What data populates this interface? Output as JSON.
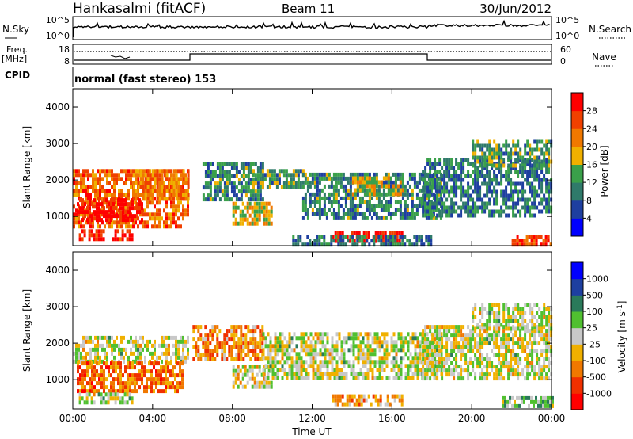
{
  "header": {
    "station": "Hankasalmi (fitACF)",
    "beam": "Beam 11",
    "date": "30/Jun/2012"
  },
  "nsky": {
    "label": "N.Sky",
    "ticks": [
      "10^5",
      "10^0"
    ],
    "right_ticks": [
      "10^5",
      "10^0"
    ],
    "right_label": "N.Search"
  },
  "freq": {
    "label_line1": "Freq.",
    "label_line2": "[MHz]",
    "ticks": [
      "18",
      "8"
    ],
    "right_ticks": [
      "60",
      "0"
    ],
    "right_label": "Nave"
  },
  "cpid": {
    "label": "CPID",
    "value": "normal (fast stereo) 153"
  },
  "colors": {
    "power": [
      "#0000ff",
      "#1e3fa0",
      "#2f7a6a",
      "#3aa04a",
      "#f0b000",
      "#f07800",
      "#f04000",
      "#ff0000"
    ],
    "velocity": [
      "#ff0000",
      "#f03000",
      "#f07800",
      "#f0b000",
      "#c8c8c8",
      "#50c030",
      "#2a7a5a",
      "#1e3fa0",
      "#0000ff"
    ]
  },
  "chart_data": [
    {
      "type": "heatmap",
      "name": "power-panel",
      "ylabel": "Slant Range [km]",
      "xlabel": "",
      "x_ticks": [
        "00:00",
        "04:00",
        "08:00",
        "12:00",
        "16:00",
        "20:00",
        "00:00"
      ],
      "y_ticks": [
        "1000",
        "2000",
        "3000",
        "4000"
      ],
      "ylim": [
        200,
        4500
      ],
      "xlim_hours": [
        0,
        24
      ],
      "colorbar": {
        "label": "Power [dB]",
        "ticks": [
          "4",
          "8",
          "12",
          "16",
          "20",
          "24",
          "28"
        ]
      },
      "regions": [
        {
          "t0": 0,
          "t1": 5.8,
          "r0": 700,
          "r1": 2300,
          "level": 0.75
        },
        {
          "t0": 0.2,
          "t1": 3.5,
          "r0": 900,
          "r1": 1500,
          "level": 0.95
        },
        {
          "t0": 0.3,
          "t1": 3.0,
          "r0": 350,
          "r1": 650,
          "level": 0.9
        },
        {
          "t0": 3.0,
          "t1": 5.8,
          "r0": 1500,
          "r1": 2300,
          "level": 0.7
        },
        {
          "t0": 6.5,
          "t1": 9.5,
          "r0": 1500,
          "r1": 2500,
          "level": 0.35
        },
        {
          "t0": 8.0,
          "t1": 10.0,
          "r0": 800,
          "r1": 1400,
          "level": 0.55
        },
        {
          "t0": 9.0,
          "t1": 11.5,
          "r0": 1800,
          "r1": 2300,
          "level": 0.4
        },
        {
          "t0": 11.5,
          "t1": 18.5,
          "r0": 1000,
          "r1": 2200,
          "level": 0.35
        },
        {
          "t0": 14.0,
          "t1": 16.5,
          "r0": 1600,
          "r1": 2100,
          "level": 0.55
        },
        {
          "t0": 13.0,
          "t1": 16.5,
          "r0": 350,
          "r1": 600,
          "level": 0.95
        },
        {
          "t0": 11.0,
          "t1": 18.0,
          "r0": 250,
          "r1": 500,
          "level": 0.3
        },
        {
          "t0": 17.5,
          "t1": 24.0,
          "r0": 1000,
          "r1": 2600,
          "level": 0.3
        },
        {
          "t0": 20.0,
          "t1": 24.0,
          "r0": 2400,
          "r1": 3100,
          "level": 0.4
        },
        {
          "t0": 22.0,
          "t1": 24.0,
          "r0": 250,
          "r1": 500,
          "level": 0.8
        }
      ]
    },
    {
      "type": "heatmap",
      "name": "velocity-panel",
      "ylabel": "Slant Range [km]",
      "xlabel": "Time UT",
      "x_ticks": [
        "00:00",
        "04:00",
        "08:00",
        "12:00",
        "16:00",
        "20:00",
        "00:00"
      ],
      "y_ticks": [
        "1000",
        "2000",
        "3000",
        "4000"
      ],
      "ylim": [
        200,
        4500
      ],
      "xlim_hours": [
        0,
        24
      ],
      "colorbar": {
        "label": "Velocity [m s^-1]",
        "ticks": [
          "1000",
          "500",
          "100",
          "25",
          "-25",
          "-100",
          "-500",
          "-1000"
        ]
      },
      "regions": [
        {
          "t0": 0,
          "t1": 5.8,
          "r0": 1500,
          "r1": 2200,
          "level": 0.5
        },
        {
          "t0": 0.2,
          "t1": 5.5,
          "r0": 700,
          "r1": 1500,
          "level": 0.25
        },
        {
          "t0": 0.3,
          "t1": 3.0,
          "r0": 350,
          "r1": 650,
          "level": 0.5
        },
        {
          "t0": 6.0,
          "t1": 9.5,
          "r0": 1600,
          "r1": 2500,
          "level": 0.3
        },
        {
          "t0": 8.0,
          "t1": 10.0,
          "r0": 800,
          "r1": 1400,
          "level": 0.45
        },
        {
          "t0": 9.5,
          "t1": 18.5,
          "r0": 1000,
          "r1": 2300,
          "level": 0.5
        },
        {
          "t0": 13.0,
          "t1": 16.5,
          "r0": 350,
          "r1": 600,
          "level": 0.35
        },
        {
          "t0": 17.5,
          "t1": 24.0,
          "r0": 1000,
          "r1": 2500,
          "level": 0.5
        },
        {
          "t0": 20.0,
          "t1": 24.0,
          "r0": 2400,
          "r1": 3100,
          "level": 0.5
        },
        {
          "t0": 21.5,
          "t1": 24.0,
          "r0": 250,
          "r1": 550,
          "level": 0.6
        }
      ]
    }
  ]
}
